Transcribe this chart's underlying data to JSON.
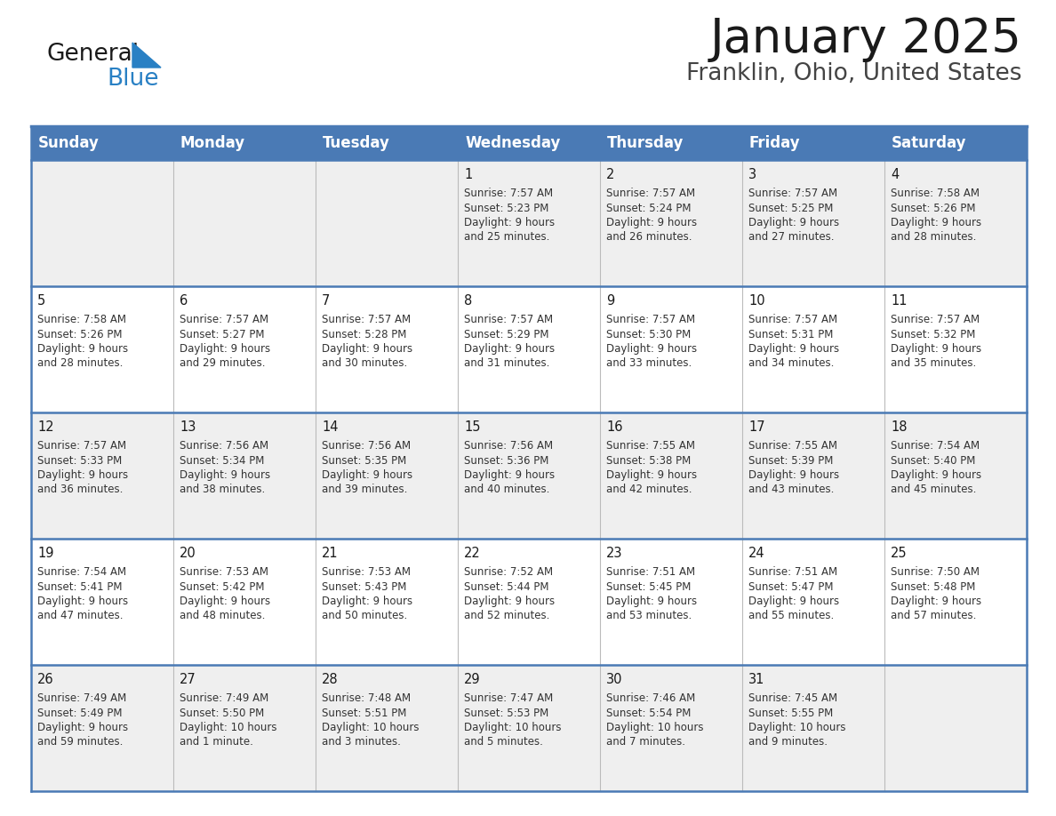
{
  "title": "January 2025",
  "subtitle": "Franklin, Ohio, United States",
  "header_bg_color": "#4A7AB5",
  "header_text_color": "#FFFFFF",
  "day_names": [
    "Sunday",
    "Monday",
    "Tuesday",
    "Wednesday",
    "Thursday",
    "Friday",
    "Saturday"
  ],
  "row_bg_colors": [
    "#EFEFEF",
    "#FFFFFF"
  ],
  "border_color": "#4A7AB5",
  "cell_text_color": "#333333",
  "days": [
    {
      "day": 1,
      "col": 3,
      "row": 0,
      "sunrise": "7:57 AM",
      "sunset": "5:23 PM",
      "daylight_line1": "Daylight: 9 hours",
      "daylight_line2": "and 25 minutes."
    },
    {
      "day": 2,
      "col": 4,
      "row": 0,
      "sunrise": "7:57 AM",
      "sunset": "5:24 PM",
      "daylight_line1": "Daylight: 9 hours",
      "daylight_line2": "and 26 minutes."
    },
    {
      "day": 3,
      "col": 5,
      "row": 0,
      "sunrise": "7:57 AM",
      "sunset": "5:25 PM",
      "daylight_line1": "Daylight: 9 hours",
      "daylight_line2": "and 27 minutes."
    },
    {
      "day": 4,
      "col": 6,
      "row": 0,
      "sunrise": "7:58 AM",
      "sunset": "5:26 PM",
      "daylight_line1": "Daylight: 9 hours",
      "daylight_line2": "and 28 minutes."
    },
    {
      "day": 5,
      "col": 0,
      "row": 1,
      "sunrise": "7:58 AM",
      "sunset": "5:26 PM",
      "daylight_line1": "Daylight: 9 hours",
      "daylight_line2": "and 28 minutes."
    },
    {
      "day": 6,
      "col": 1,
      "row": 1,
      "sunrise": "7:57 AM",
      "sunset": "5:27 PM",
      "daylight_line1": "Daylight: 9 hours",
      "daylight_line2": "and 29 minutes."
    },
    {
      "day": 7,
      "col": 2,
      "row": 1,
      "sunrise": "7:57 AM",
      "sunset": "5:28 PM",
      "daylight_line1": "Daylight: 9 hours",
      "daylight_line2": "and 30 minutes."
    },
    {
      "day": 8,
      "col": 3,
      "row": 1,
      "sunrise": "7:57 AM",
      "sunset": "5:29 PM",
      "daylight_line1": "Daylight: 9 hours",
      "daylight_line2": "and 31 minutes."
    },
    {
      "day": 9,
      "col": 4,
      "row": 1,
      "sunrise": "7:57 AM",
      "sunset": "5:30 PM",
      "daylight_line1": "Daylight: 9 hours",
      "daylight_line2": "and 33 minutes."
    },
    {
      "day": 10,
      "col": 5,
      "row": 1,
      "sunrise": "7:57 AM",
      "sunset": "5:31 PM",
      "daylight_line1": "Daylight: 9 hours",
      "daylight_line2": "and 34 minutes."
    },
    {
      "day": 11,
      "col": 6,
      "row": 1,
      "sunrise": "7:57 AM",
      "sunset": "5:32 PM",
      "daylight_line1": "Daylight: 9 hours",
      "daylight_line2": "and 35 minutes."
    },
    {
      "day": 12,
      "col": 0,
      "row": 2,
      "sunrise": "7:57 AM",
      "sunset": "5:33 PM",
      "daylight_line1": "Daylight: 9 hours",
      "daylight_line2": "and 36 minutes."
    },
    {
      "day": 13,
      "col": 1,
      "row": 2,
      "sunrise": "7:56 AM",
      "sunset": "5:34 PM",
      "daylight_line1": "Daylight: 9 hours",
      "daylight_line2": "and 38 minutes."
    },
    {
      "day": 14,
      "col": 2,
      "row": 2,
      "sunrise": "7:56 AM",
      "sunset": "5:35 PM",
      "daylight_line1": "Daylight: 9 hours",
      "daylight_line2": "and 39 minutes."
    },
    {
      "day": 15,
      "col": 3,
      "row": 2,
      "sunrise": "7:56 AM",
      "sunset": "5:36 PM",
      "daylight_line1": "Daylight: 9 hours",
      "daylight_line2": "and 40 minutes."
    },
    {
      "day": 16,
      "col": 4,
      "row": 2,
      "sunrise": "7:55 AM",
      "sunset": "5:38 PM",
      "daylight_line1": "Daylight: 9 hours",
      "daylight_line2": "and 42 minutes."
    },
    {
      "day": 17,
      "col": 5,
      "row": 2,
      "sunrise": "7:55 AM",
      "sunset": "5:39 PM",
      "daylight_line1": "Daylight: 9 hours",
      "daylight_line2": "and 43 minutes."
    },
    {
      "day": 18,
      "col": 6,
      "row": 2,
      "sunrise": "7:54 AM",
      "sunset": "5:40 PM",
      "daylight_line1": "Daylight: 9 hours",
      "daylight_line2": "and 45 minutes."
    },
    {
      "day": 19,
      "col": 0,
      "row": 3,
      "sunrise": "7:54 AM",
      "sunset": "5:41 PM",
      "daylight_line1": "Daylight: 9 hours",
      "daylight_line2": "and 47 minutes."
    },
    {
      "day": 20,
      "col": 1,
      "row": 3,
      "sunrise": "7:53 AM",
      "sunset": "5:42 PM",
      "daylight_line1": "Daylight: 9 hours",
      "daylight_line2": "and 48 minutes."
    },
    {
      "day": 21,
      "col": 2,
      "row": 3,
      "sunrise": "7:53 AM",
      "sunset": "5:43 PM",
      "daylight_line1": "Daylight: 9 hours",
      "daylight_line2": "and 50 minutes."
    },
    {
      "day": 22,
      "col": 3,
      "row": 3,
      "sunrise": "7:52 AM",
      "sunset": "5:44 PM",
      "daylight_line1": "Daylight: 9 hours",
      "daylight_line2": "and 52 minutes."
    },
    {
      "day": 23,
      "col": 4,
      "row": 3,
      "sunrise": "7:51 AM",
      "sunset": "5:45 PM",
      "daylight_line1": "Daylight: 9 hours",
      "daylight_line2": "and 53 minutes."
    },
    {
      "day": 24,
      "col": 5,
      "row": 3,
      "sunrise": "7:51 AM",
      "sunset": "5:47 PM",
      "daylight_line1": "Daylight: 9 hours",
      "daylight_line2": "and 55 minutes."
    },
    {
      "day": 25,
      "col": 6,
      "row": 3,
      "sunrise": "7:50 AM",
      "sunset": "5:48 PM",
      "daylight_line1": "Daylight: 9 hours",
      "daylight_line2": "and 57 minutes."
    },
    {
      "day": 26,
      "col": 0,
      "row": 4,
      "sunrise": "7:49 AM",
      "sunset": "5:49 PM",
      "daylight_line1": "Daylight: 9 hours",
      "daylight_line2": "and 59 minutes."
    },
    {
      "day": 27,
      "col": 1,
      "row": 4,
      "sunrise": "7:49 AM",
      "sunset": "5:50 PM",
      "daylight_line1": "Daylight: 10 hours",
      "daylight_line2": "and 1 minute."
    },
    {
      "day": 28,
      "col": 2,
      "row": 4,
      "sunrise": "7:48 AM",
      "sunset": "5:51 PM",
      "daylight_line1": "Daylight: 10 hours",
      "daylight_line2": "and 3 minutes."
    },
    {
      "day": 29,
      "col": 3,
      "row": 4,
      "sunrise": "7:47 AM",
      "sunset": "5:53 PM",
      "daylight_line1": "Daylight: 10 hours",
      "daylight_line2": "and 5 minutes."
    },
    {
      "day": 30,
      "col": 4,
      "row": 4,
      "sunrise": "7:46 AM",
      "sunset": "5:54 PM",
      "daylight_line1": "Daylight: 10 hours",
      "daylight_line2": "and 7 minutes."
    },
    {
      "day": 31,
      "col": 5,
      "row": 4,
      "sunrise": "7:45 AM",
      "sunset": "5:55 PM",
      "daylight_line1": "Daylight: 10 hours",
      "daylight_line2": "and 9 minutes."
    }
  ],
  "logo_text1": "General",
  "logo_text2": "Blue",
  "logo_color1": "#1a1a1a",
  "logo_color2": "#2980C4",
  "logo_triangle_color": "#2980C4",
  "fig_width": 11.88,
  "fig_height": 9.18,
  "dpi": 100
}
